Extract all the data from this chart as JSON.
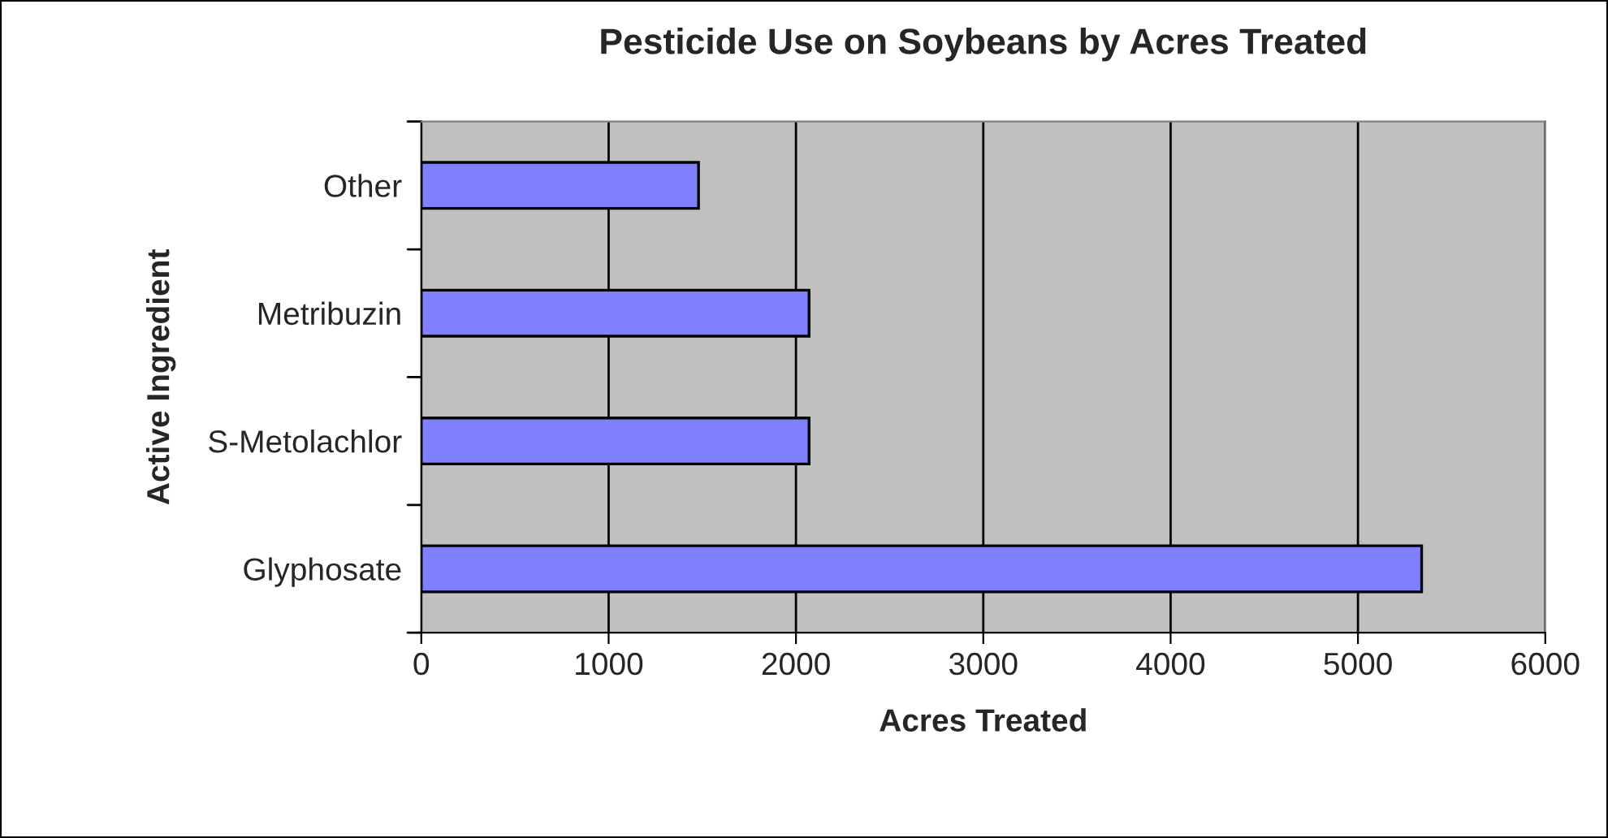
{
  "chart_data": {
    "type": "bar",
    "orientation": "horizontal",
    "title": "Pesticide Use on Soybeans by Acres Treated",
    "xlabel": "Acres Treated",
    "ylabel": "Active Ingredient",
    "categories": [
      "Other",
      "Metribuzin",
      "S-Metolachlor",
      "Glyphosate"
    ],
    "values": [
      1480,
      2070,
      2070,
      5340
    ],
    "color": "#8080ff",
    "xlim": [
      0,
      6000
    ],
    "xticks": [
      0,
      1000,
      2000,
      3000,
      4000,
      5000,
      6000
    ],
    "grid": "x"
  }
}
